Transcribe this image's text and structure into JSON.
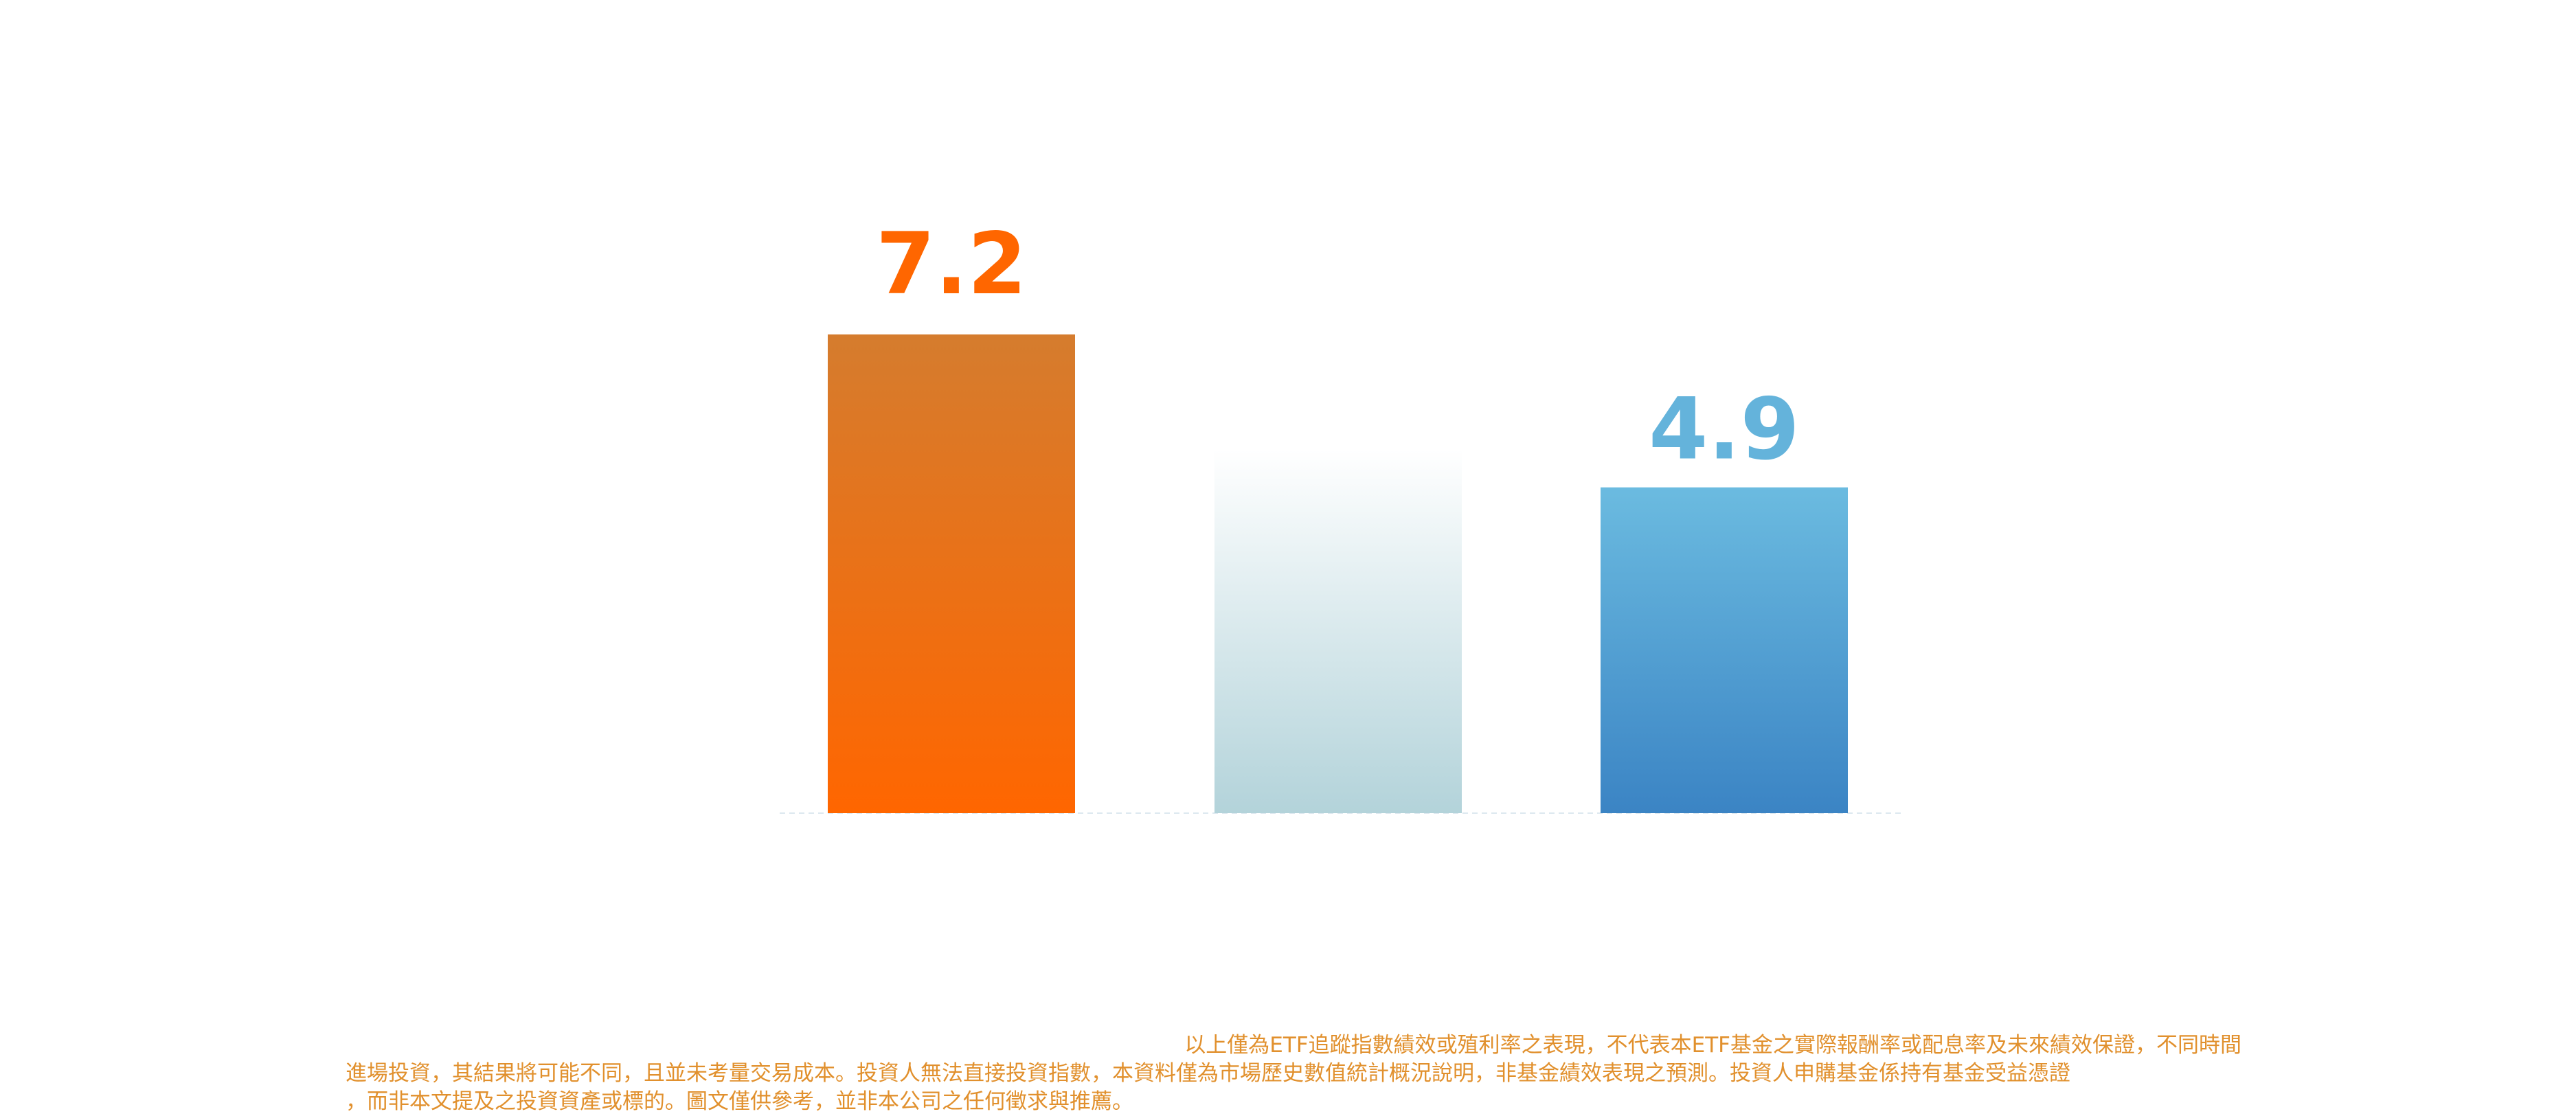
{
  "chart_data": {
    "type": "bar",
    "categories": [
      "",
      "",
      ""
    ],
    "values": [
      7.2,
      null,
      4.9
    ],
    "data_labels": [
      "7.2",
      "",
      "4.9"
    ],
    "colors": {
      "bar_1": {
        "top": "#d57c2e",
        "bottom": "#ff6600",
        "label": "#ff6600"
      },
      "bar_2": {
        "top": "#ffffff",
        "bottom": "#b3d3da"
      },
      "bar_3": {
        "top": "#6bbbe0",
        "bottom": "#3b84c4",
        "label": "#64b3db"
      }
    },
    "ylim": [
      0,
      7.2
    ],
    "grid": false,
    "title": "",
    "xlabel": "",
    "ylabel": ""
  },
  "disclaimer": {
    "line1": "以上僅為ETF追蹤指數績效或殖利率之表現，不代表本ETF基金之實際報酬率或配息率及未來績效保證，不同時間",
    "line2": "進場投資，其結果將可能不同，且並未考量交易成本。投資人無法直接投資指數，本資料僅為市場歷史數值統計概況說明，非基金績效表現之預測。投資人申購基金係持有基金受益憑證",
    "line3": "，而非本文提及之投資資產或標的。圖文僅供參考，並非本公司之任何徵求與推薦。"
  }
}
